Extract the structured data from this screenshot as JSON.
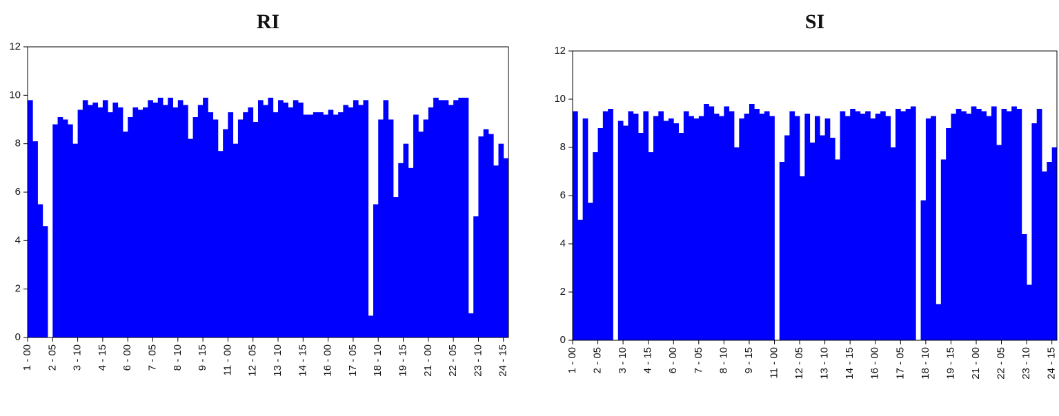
{
  "chart_data": [
    {
      "type": "bar",
      "title": "RI",
      "color": "#0000ff",
      "ylim": [
        0,
        12
      ],
      "yticks": [
        0,
        2,
        4,
        6,
        8,
        10,
        12
      ],
      "categories": [
        "1 - 00",
        null,
        null,
        null,
        null,
        "2 - 05",
        null,
        null,
        null,
        null,
        "3 - 10",
        null,
        null,
        null,
        null,
        "4 - 15",
        null,
        null,
        null,
        null,
        "6 - 00",
        null,
        null,
        null,
        null,
        "7 - 05",
        null,
        null,
        null,
        null,
        "8 - 10",
        null,
        null,
        null,
        null,
        "9 - 15",
        null,
        null,
        null,
        null,
        "11 - 00",
        null,
        null,
        null,
        null,
        "12 - 05",
        null,
        null,
        null,
        null,
        "13 - 10",
        null,
        null,
        null,
        null,
        "14 - 15",
        null,
        null,
        null,
        null,
        "16 - 00",
        null,
        null,
        null,
        null,
        "17 - 05",
        null,
        null,
        null,
        null,
        "18 - 10",
        null,
        null,
        null,
        null,
        "19 - 15",
        null,
        null,
        null,
        null,
        "21 - 00",
        null,
        null,
        null,
        null,
        "22 - 05",
        null,
        null,
        null,
        null,
        "23 - 10",
        null,
        null,
        null,
        null,
        "24 - 15"
      ],
      "values": [
        9.8,
        8.1,
        5.5,
        4.6,
        0,
        8.8,
        9.1,
        9.0,
        8.8,
        8.0,
        9.4,
        9.8,
        9.6,
        9.7,
        9.5,
        9.8,
        9.3,
        9.7,
        9.5,
        8.5,
        9.1,
        9.5,
        9.4,
        9.5,
        9.8,
        9.7,
        9.9,
        9.6,
        9.9,
        9.5,
        9.8,
        9.6,
        8.2,
        9.1,
        9.6,
        9.9,
        9.3,
        9.0,
        7.7,
        8.6,
        9.3,
        8.0,
        9.0,
        9.3,
        9.5,
        8.9,
        9.8,
        9.6,
        9.9,
        9.3,
        9.8,
        9.7,
        9.5,
        9.8,
        9.7,
        9.2,
        9.2,
        9.3,
        9.3,
        9.2,
        9.4,
        9.2,
        9.3,
        9.6,
        9.5,
        9.8,
        9.6,
        9.8,
        0.9,
        5.5,
        9.0,
        9.8,
        9.0,
        5.8,
        7.2,
        8.0,
        7.0,
        9.2,
        8.5,
        9.0,
        9.5,
        9.9,
        9.8,
        9.8,
        9.6,
        9.8,
        9.9,
        9.9,
        1.0,
        5.0,
        8.3,
        8.6,
        8.4,
        7.1,
        8.0,
        7.4
      ]
    },
    {
      "type": "bar",
      "title": "SI",
      "color": "#0000ff",
      "ylim": [
        0,
        12
      ],
      "yticks": [
        0,
        2,
        4,
        6,
        8,
        10,
        12
      ],
      "categories": [
        "1 - 00",
        null,
        null,
        null,
        null,
        "2 - 05",
        null,
        null,
        null,
        null,
        "3 - 10",
        null,
        null,
        null,
        null,
        "4 - 15",
        null,
        null,
        null,
        null,
        "6 - 00",
        null,
        null,
        null,
        null,
        "7 - 05",
        null,
        null,
        null,
        null,
        "8 - 10",
        null,
        null,
        null,
        null,
        "9 - 15",
        null,
        null,
        null,
        null,
        "11 - 00",
        null,
        null,
        null,
        null,
        "12 - 05",
        null,
        null,
        null,
        null,
        "13 - 10",
        null,
        null,
        null,
        null,
        "14 - 15",
        null,
        null,
        null,
        null,
        "16 - 00",
        null,
        null,
        null,
        null,
        "17 - 05",
        null,
        null,
        null,
        null,
        "18 - 10",
        null,
        null,
        null,
        null,
        "19 - 15",
        null,
        null,
        null,
        null,
        "21 - 00",
        null,
        null,
        null,
        null,
        "22 - 05",
        null,
        null,
        null,
        null,
        "23 - 10",
        null,
        null,
        null,
        null,
        "24 - 15"
      ],
      "values": [
        9.5,
        5.0,
        9.2,
        5.7,
        7.8,
        8.8,
        9.5,
        9.6,
        0,
        9.1,
        8.9,
        9.5,
        9.4,
        8.6,
        9.5,
        7.8,
        9.3,
        9.5,
        9.1,
        9.2,
        9.0,
        8.6,
        9.5,
        9.3,
        9.2,
        9.3,
        9.8,
        9.7,
        9.4,
        9.3,
        9.7,
        9.5,
        8.0,
        9.2,
        9.4,
        9.8,
        9.6,
        9.4,
        9.5,
        9.3,
        0,
        7.4,
        8.5,
        9.5,
        9.3,
        6.8,
        9.4,
        8.2,
        9.3,
        8.5,
        9.2,
        8.4,
        7.5,
        9.5,
        9.3,
        9.6,
        9.5,
        9.4,
        9.5,
        9.2,
        9.4,
        9.5,
        9.3,
        8.0,
        9.6,
        9.5,
        9.6,
        9.7,
        0,
        5.8,
        9.2,
        9.3,
        1.5,
        7.5,
        8.8,
        9.4,
        9.6,
        9.5,
        9.4,
        9.7,
        9.6,
        9.5,
        9.3,
        9.7,
        8.1,
        9.6,
        9.5,
        9.7,
        9.6,
        4.4,
        2.3,
        9.0,
        9.6,
        7.0,
        7.4,
        8.0
      ]
    }
  ]
}
